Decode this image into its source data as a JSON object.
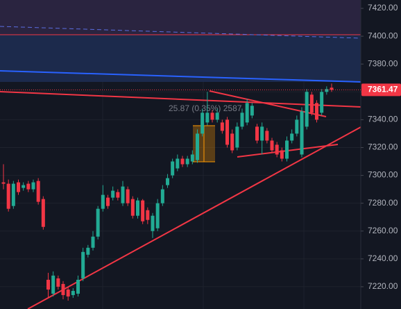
{
  "chart_data": {
    "type": "candlestick",
    "ylim": [
      7204,
      7426
    ],
    "yticks": [
      {
        "value": 7220,
        "label": "7220.00"
      },
      {
        "value": 7240,
        "label": "7240.00"
      },
      {
        "value": 7260,
        "label": "7260.00"
      },
      {
        "value": 7280,
        "label": "7280.00"
      },
      {
        "value": 7300,
        "label": "7300.00"
      },
      {
        "value": 7320,
        "label": "7320.00"
      },
      {
        "value": 7340,
        "label": "7340.00"
      },
      {
        "value": 7360,
        "label": "7360.00"
      },
      {
        "value": 7380,
        "label": "7380.00"
      },
      {
        "value": 7400,
        "label": "7400.00"
      },
      {
        "value": 7420,
        "label": "7420.00"
      }
    ],
    "up_color": "#22ab94",
    "down_color": "#f23645",
    "open": [
      7295,
      7294,
      7278,
      7295,
      7291,
      7294,
      7290,
      7296,
      7283,
      7225,
      7215,
      7226,
      7222,
      7218,
      7214,
      7215,
      7226,
      7243,
      7248,
      7256,
      7276,
      7284,
      7284,
      7288,
      7280,
      7290,
      7283,
      7271,
      7282,
      7275,
      7260,
      7262,
      7280,
      7293,
      7300,
      7305,
      7312,
      7308,
      7310,
      7311,
      7330,
      7338,
      7345,
      7340,
      7338,
      7340,
      7330,
      7320,
      7335,
      7338,
      7343,
      7335,
      7325,
      7332,
      7325,
      7322,
      7318,
      7312,
      7325,
      7330,
      7315,
      7335,
      7358,
      7352,
      7345,
      7360,
      7363
    ],
    "close": [
      7294,
      7276,
      7294,
      7288,
      7293,
      7290,
      7295,
      7281,
      7263,
      7218,
      7228,
      7220,
      7214,
      7213,
      7217,
      7225,
      7245,
      7248,
      7256,
      7276,
      7286,
      7278,
      7289,
      7284,
      7292,
      7280,
      7271,
      7282,
      7267,
      7268,
      7271,
      7280,
      7290,
      7298,
      7310,
      7312,
      7308,
      7312,
      7315,
      7330,
      7345,
      7345,
      7340,
      7345,
      7332,
      7322,
      7318,
      7335,
      7345,
      7352,
      7350,
      7325,
      7335,
      7325,
      7318,
      7315,
      7312,
      7325,
      7330,
      7340,
      7346,
      7360,
      7345,
      7340,
      7360,
      7362,
      7361.47
    ],
    "high": [
      7308,
      7297,
      7296,
      7297,
      7295,
      7296,
      7297,
      7298,
      7285,
      7230,
      7231,
      7228,
      7224,
      7220,
      7219,
      7228,
      7248,
      7250,
      7260,
      7278,
      7293,
      7286,
      7292,
      7290,
      7296,
      7292,
      7285,
      7284,
      7283,
      7277,
      7273,
      7283,
      7293,
      7301,
      7312,
      7315,
      7314,
      7314,
      7318,
      7333,
      7348,
      7360,
      7347,
      7348,
      7340,
      7342,
      7333,
      7338,
      7348,
      7355,
      7352,
      7337,
      7338,
      7334,
      7327,
      7324,
      7320,
      7328,
      7333,
      7343,
      7349,
      7362,
      7360,
      7354,
      7362,
      7364,
      7366
    ],
    "low": [
      7290,
      7274,
      7276,
      7286,
      7289,
      7288,
      7288,
      7279,
      7261,
      7212,
      7213,
      7218,
      7211,
      7210,
      7212,
      7213,
      7224,
      7241,
      7246,
      7254,
      7274,
      7276,
      7282,
      7282,
      7278,
      7278,
      7269,
      7269,
      7265,
      7265,
      7255,
      7260,
      7278,
      7291,
      7298,
      7303,
      7306,
      7306,
      7308,
      7309,
      7328,
      7336,
      7338,
      7338,
      7330,
      7320,
      7316,
      7318,
      7333,
      7336,
      7341,
      7323,
      7315,
      7323,
      7316,
      7313,
      7310,
      7310,
      7323,
      7328,
      7313,
      7333,
      7343,
      7338,
      7343,
      7358,
      7360
    ],
    "last_price": {
      "value": 7361.47,
      "label": "7361.47"
    },
    "annotation": "25.87 (0.35%) 2587"
  }
}
